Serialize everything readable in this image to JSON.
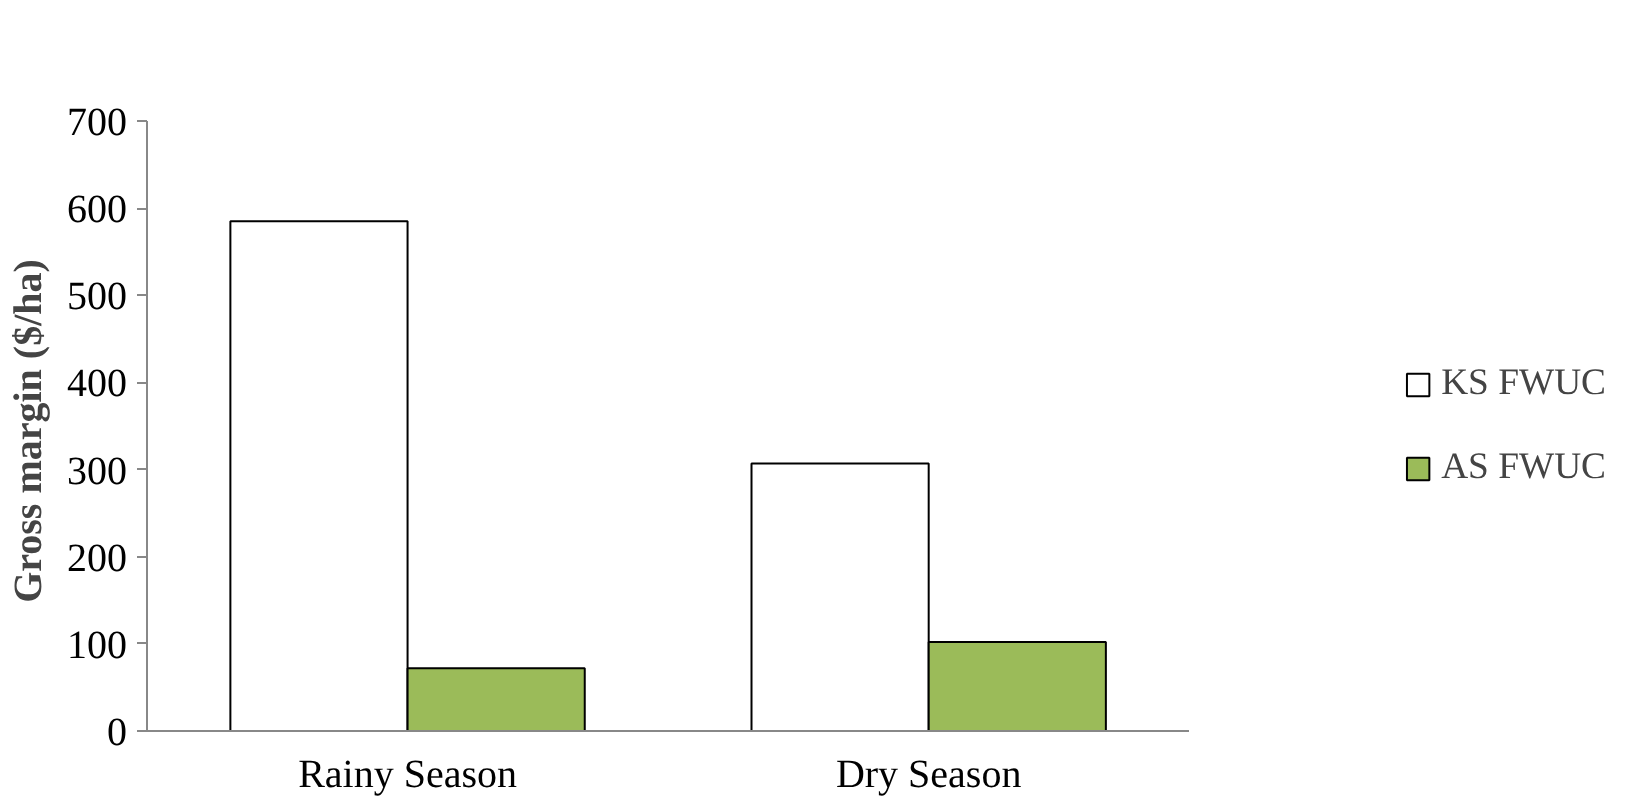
{
  "chart_data": {
    "type": "bar",
    "ylabel": "Gross  margin ($/ha)",
    "categories": [
      "Rainy Season",
      "Dry Season"
    ],
    "series": [
      {
        "name": "KS FWUC",
        "color": "#ffffff",
        "values": [
          585,
          307
        ]
      },
      {
        "name": "AS FWUC",
        "color": "#9bbb59",
        "values": [
          72,
          102
        ]
      }
    ],
    "ylim": [
      0,
      700
    ],
    "yticks": [
      0,
      100,
      200,
      300,
      400,
      500,
      600,
      700
    ],
    "grid": false,
    "legend": "right"
  }
}
